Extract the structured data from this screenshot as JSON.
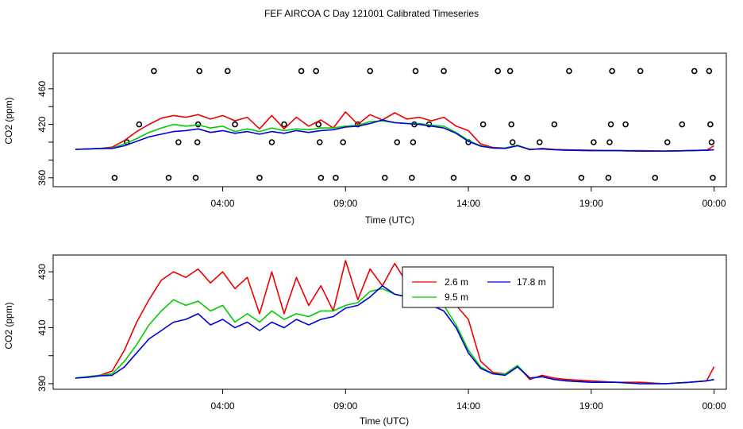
{
  "title": "FEF AIRCOA C  Day 121001  Calibrated Timeseries",
  "colors": {
    "2.6 m": "#ee0000",
    "9.5 m": "#00cc00",
    "17.8 m": "#0000dd",
    "axis": "#000000"
  },
  "chart_data": [
    {
      "type": "line",
      "panel": "top",
      "title": "",
      "xlabel": "Time (UTC)",
      "ylabel": "CO2 (ppm)",
      "xlim": [
        -2.9,
        24.5
      ],
      "ylim": [
        350,
        500
      ],
      "xticks": [
        4,
        9,
        14,
        19,
        24
      ],
      "xtick_labels": [
        "04:00",
        "09:00",
        "14:00",
        "19:00",
        "00:00"
      ],
      "yticks": [
        360,
        380,
        400,
        420,
        440,
        460
      ],
      "ytick_labels": [
        "360",
        "",
        "",
        "420",
        "",
        "460"
      ],
      "grid": false,
      "series_ref": "shared_series",
      "calibration_points": [
        {
          "x": -0.4,
          "y": 360
        },
        {
          "x": 0.1,
          "y": 400
        },
        {
          "x": 0.6,
          "y": 420
        },
        {
          "x": 1.2,
          "y": 480
        },
        {
          "x": 1.8,
          "y": 360
        },
        {
          "x": 2.2,
          "y": 400
        },
        {
          "x": 2.9,
          "y": 360
        },
        {
          "x": 2.97,
          "y": 400
        },
        {
          "x": 3.0,
          "y": 420
        },
        {
          "x": 3.05,
          "y": 480
        },
        {
          "x": 4.2,
          "y": 480
        },
        {
          "x": 4.5,
          "y": 420
        },
        {
          "x": 5.5,
          "y": 360
        },
        {
          "x": 6.0,
          "y": 400
        },
        {
          "x": 6.5,
          "y": 420
        },
        {
          "x": 7.2,
          "y": 480
        },
        {
          "x": 7.8,
          "y": 480
        },
        {
          "x": 7.9,
          "y": 420
        },
        {
          "x": 7.95,
          "y": 400
        },
        {
          "x": 8.0,
          "y": 360
        },
        {
          "x": 8.6,
          "y": 360
        },
        {
          "x": 8.9,
          "y": 400
        },
        {
          "x": 9.5,
          "y": 420
        },
        {
          "x": 10.0,
          "y": 480
        },
        {
          "x": 10.6,
          "y": 360
        },
        {
          "x": 11.1,
          "y": 400
        },
        {
          "x": 11.7,
          "y": 360
        },
        {
          "x": 11.75,
          "y": 400
        },
        {
          "x": 11.8,
          "y": 420
        },
        {
          "x": 11.85,
          "y": 480
        },
        {
          "x": 12.4,
          "y": 420
        },
        {
          "x": 13.0,
          "y": 480
        },
        {
          "x": 13.4,
          "y": 360
        },
        {
          "x": 14.0,
          "y": 400
        },
        {
          "x": 14.6,
          "y": 420
        },
        {
          "x": 15.2,
          "y": 480
        },
        {
          "x": 15.7,
          "y": 480
        },
        {
          "x": 15.75,
          "y": 420
        },
        {
          "x": 15.8,
          "y": 400
        },
        {
          "x": 15.85,
          "y": 360
        },
        {
          "x": 16.4,
          "y": 360
        },
        {
          "x": 16.9,
          "y": 400
        },
        {
          "x": 17.5,
          "y": 420
        },
        {
          "x": 18.1,
          "y": 480
        },
        {
          "x": 18.6,
          "y": 360
        },
        {
          "x": 19.1,
          "y": 400
        },
        {
          "x": 19.7,
          "y": 360
        },
        {
          "x": 19.75,
          "y": 400
        },
        {
          "x": 19.8,
          "y": 420
        },
        {
          "x": 19.85,
          "y": 480
        },
        {
          "x": 20.4,
          "y": 420
        },
        {
          "x": 21.0,
          "y": 480
        },
        {
          "x": 21.6,
          "y": 360
        },
        {
          "x": 22.1,
          "y": 400
        },
        {
          "x": 22.7,
          "y": 420
        },
        {
          "x": 23.2,
          "y": 480
        },
        {
          "x": 23.8,
          "y": 480
        },
        {
          "x": 23.85,
          "y": 420
        },
        {
          "x": 23.9,
          "y": 400
        },
        {
          "x": 23.95,
          "y": 360
        }
      ]
    },
    {
      "type": "line",
      "panel": "bottom",
      "title": "",
      "xlabel": "Time (UTC)",
      "ylabel": "CO2 (ppm)",
      "xlim": [
        -2.9,
        24.5
      ],
      "ylim": [
        388,
        436
      ],
      "xticks": [
        4,
        9,
        14,
        19,
        24
      ],
      "xtick_labels": [
        "04:00",
        "09:00",
        "14:00",
        "19:00",
        "00:00"
      ],
      "yticks": [
        390,
        400,
        410,
        420,
        430
      ],
      "ytick_labels": [
        "390",
        "",
        "410",
        "",
        "430"
      ],
      "grid": false,
      "legend": {
        "placement": "top-right",
        "entries": [
          "2.6 m",
          "9.5 m",
          "17.8 m"
        ]
      },
      "series_ref": "shared_series"
    }
  ],
  "shared_series": {
    "x": [
      -2.0,
      -1.5,
      -1.0,
      -0.5,
      0.0,
      0.5,
      1.0,
      1.5,
      2.0,
      2.5,
      3.0,
      3.5,
      4.0,
      4.5,
      5.0,
      5.5,
      6.0,
      6.5,
      7.0,
      7.5,
      8.0,
      8.5,
      9.0,
      9.5,
      10.0,
      10.5,
      11.0,
      11.5,
      12.0,
      12.5,
      13.0,
      13.5,
      14.0,
      14.5,
      15.0,
      15.5,
      16.0,
      16.5,
      17.0,
      17.5,
      18.0,
      19.0,
      20.0,
      21.0,
      22.0,
      23.0,
      23.7,
      24.0
    ],
    "series": [
      {
        "name": "2.6 m",
        "values": [
          392.0,
          392.5,
          393.0,
          394.5,
          402.0,
          412.0,
          420.0,
          427.0,
          430.0,
          428.0,
          431.0,
          426.0,
          430.0,
          424.0,
          428.0,
          415.0,
          430.0,
          415.0,
          428.0,
          418.0,
          425.0,
          416.0,
          434.0,
          420.0,
          431.0,
          425.0,
          433.0,
          426.0,
          428.0,
          424.0,
          428.0,
          418.0,
          413.0,
          398.0,
          394.0,
          393.5,
          396.5,
          391.5,
          393.0,
          392.0,
          391.5,
          391.0,
          390.5,
          390.5,
          390.0,
          390.5,
          391.0,
          396.0
        ]
      },
      {
        "name": "9.5 m",
        "values": [
          392.0,
          392.5,
          393.0,
          393.5,
          398.0,
          404.0,
          411.0,
          416.0,
          420.0,
          418.0,
          419.5,
          416.0,
          418.0,
          412.0,
          415.0,
          412.0,
          416.0,
          413.0,
          415.0,
          414.0,
          416.0,
          416.0,
          418.0,
          419.0,
          423.0,
          424.0,
          422.0,
          421.0,
          421.0,
          419.0,
          418.0,
          411.0,
          402.0,
          396.0,
          393.5,
          393.5,
          396.5,
          392.0,
          392.5,
          391.5,
          391.0,
          390.5,
          390.5,
          390.0,
          390.0,
          390.5,
          391.0,
          391.5
        ]
      },
      {
        "name": "17.8 m",
        "values": [
          392.0,
          392.3,
          392.8,
          393.0,
          396.0,
          401.0,
          406.0,
          409.0,
          412.0,
          413.0,
          415.0,
          411.0,
          413.0,
          410.0,
          412.0,
          409.0,
          412.0,
          410.0,
          413.0,
          411.0,
          413.0,
          414.0,
          417.0,
          418.0,
          421.0,
          425.0,
          422.0,
          421.0,
          420.0,
          418.0,
          416.0,
          410.0,
          401.0,
          395.5,
          393.5,
          393.0,
          396.0,
          392.0,
          392.5,
          391.5,
          391.0,
          390.5,
          390.5,
          390.0,
          390.0,
          390.5,
          391.0,
          391.5
        ]
      }
    ]
  }
}
